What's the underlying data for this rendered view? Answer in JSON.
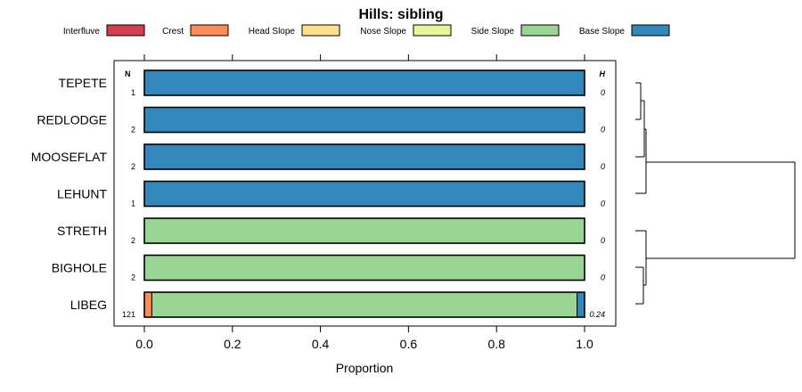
{
  "chart_data": {
    "type": "bar",
    "orientation": "horizontal",
    "stacked": true,
    "title": "Hills: sibling",
    "xlabel": "Proportion",
    "ylabel": "",
    "xlim": [
      0,
      1
    ],
    "xticks": [
      "0.0",
      "0.2",
      "0.4",
      "0.6",
      "0.8",
      "1.0"
    ],
    "n_header": "N",
    "h_header": "H",
    "legend_position": "top",
    "legend": [
      {
        "name": "Interfluve",
        "color": "#d53e4f"
      },
      {
        "name": "Crest",
        "color": "#fc8d59"
      },
      {
        "name": "Head Slope",
        "color": "#fee08b"
      },
      {
        "name": "Nose Slope",
        "color": "#e6f598"
      },
      {
        "name": "Side Slope",
        "color": "#99d594"
      },
      {
        "name": "Base Slope",
        "color": "#3288bd"
      }
    ],
    "categories": [
      "TEPETE",
      "REDLODGE",
      "MOOSEFLAT",
      "LEHUNT",
      "STRETH",
      "BIGHOLE",
      "LIBEG"
    ],
    "n": [
      "1",
      "2",
      "2",
      "1",
      "2",
      "2",
      "121"
    ],
    "h": [
      "0",
      "0",
      "0",
      "0",
      "0",
      "0",
      "0.24"
    ],
    "series": [
      {
        "name": "Interfluve",
        "values": [
          0,
          0,
          0,
          0,
          0,
          0,
          0
        ]
      },
      {
        "name": "Crest",
        "values": [
          0,
          0,
          0,
          0,
          0,
          0,
          0.017
        ]
      },
      {
        "name": "Head Slope",
        "values": [
          0,
          0,
          0,
          0,
          0,
          0,
          0
        ]
      },
      {
        "name": "Nose Slope",
        "values": [
          0,
          0,
          0,
          0,
          0,
          0,
          0
        ]
      },
      {
        "name": "Side Slope",
        "values": [
          0,
          0,
          0,
          0,
          1,
          1,
          0.966
        ]
      },
      {
        "name": "Base Slope",
        "values": [
          1,
          1,
          1,
          1,
          0,
          0,
          0.017
        ]
      }
    ],
    "dendrogram": "right"
  }
}
